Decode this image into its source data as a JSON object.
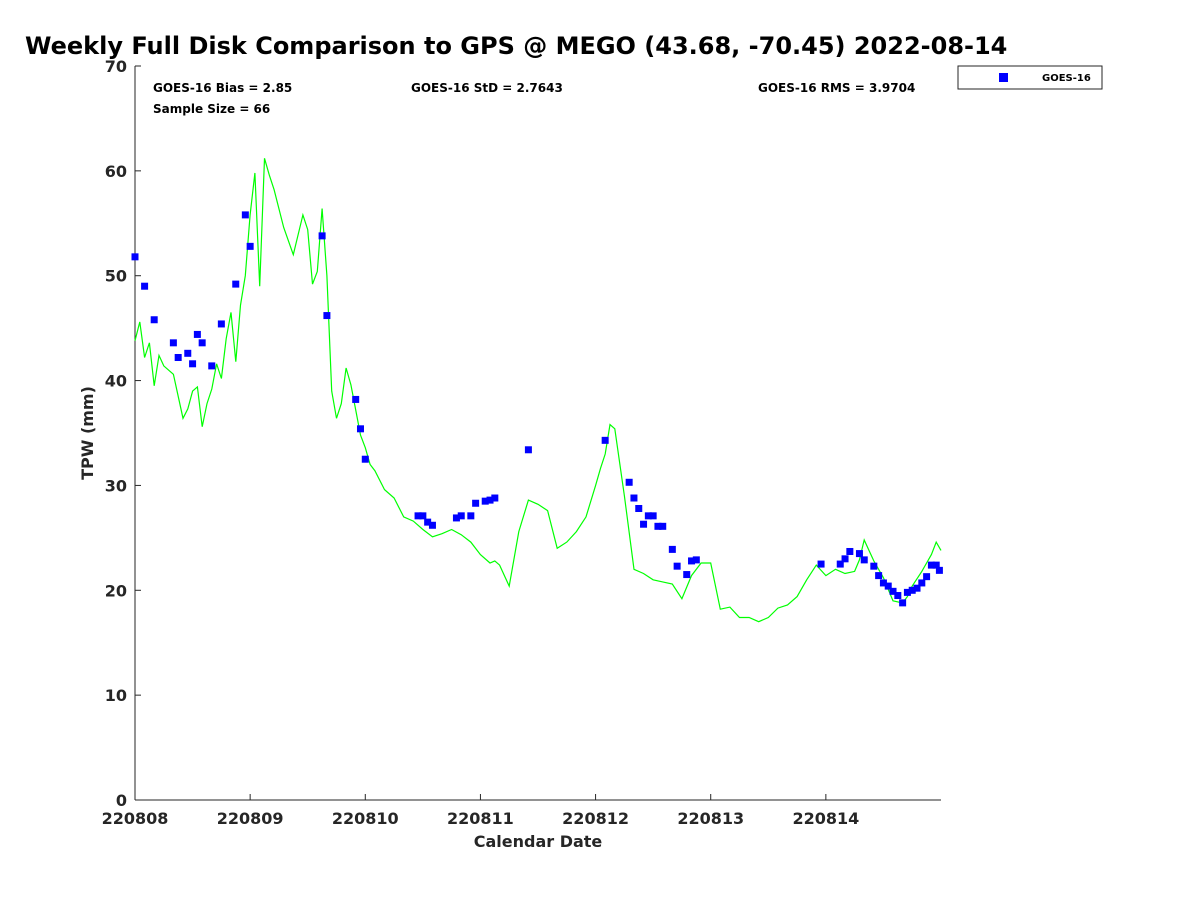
{
  "chart_data": {
    "type": "scatter",
    "title": "Weekly Full Disk Comparison to GPS @ MEGO (43.68, -70.45) 2022-08-14",
    "xlabel": "Calendar Date",
    "ylabel": "TPW (mm)",
    "xlim": [
      "2022-08-08T00:00",
      "2022-08-15T00:00"
    ],
    "ylim": [
      0,
      70
    ],
    "x_tick_labels": [
      "220808",
      "220809",
      "220810",
      "220811",
      "220812",
      "220813",
      "220814"
    ],
    "y_tick_labels": [
      "0",
      "10",
      "20",
      "30",
      "40",
      "50",
      "60",
      "70"
    ],
    "grid": false,
    "legend": {
      "position": "outside-top-right",
      "entries": [
        "GOES-16"
      ]
    },
    "annotations": {
      "bias": "GOES-16 Bias = 2.85",
      "std": "GOES-16 StD = 2.7643",
      "rms": "GOES-16 RMS = 3.9704",
      "sample": "Sample Size = 66"
    },
    "series": [
      {
        "name": "GOES-16",
        "marker": "square",
        "color": "#0000ff",
        "x": [
          "2022-08-08T00:00",
          "2022-08-08T02:00",
          "2022-08-08T04:00",
          "2022-08-08T08:00",
          "2022-08-08T09:00",
          "2022-08-08T11:00",
          "2022-08-08T12:00",
          "2022-08-08T13:00",
          "2022-08-08T14:00",
          "2022-08-08T16:00",
          "2022-08-08T18:00",
          "2022-08-08T21:00",
          "2022-08-08T23:00",
          "2022-08-09T00:00",
          "2022-08-09T15:00",
          "2022-08-09T16:00",
          "2022-08-09T22:00",
          "2022-08-09T23:00",
          "2022-08-10T00:00",
          "2022-08-10T11:00",
          "2022-08-10T12:00",
          "2022-08-10T13:00",
          "2022-08-10T14:00",
          "2022-08-10T19:00",
          "2022-08-10T20:00",
          "2022-08-10T22:00",
          "2022-08-10T23:00",
          "2022-08-11T01:00",
          "2022-08-11T02:00",
          "2022-08-11T03:00",
          "2022-08-11T10:00",
          "2022-08-12T02:00",
          "2022-08-12T07:00",
          "2022-08-12T08:00",
          "2022-08-12T09:00",
          "2022-08-12T10:00",
          "2022-08-12T11:00",
          "2022-08-12T12:00",
          "2022-08-12T13:00",
          "2022-08-12T14:00",
          "2022-08-12T16:00",
          "2022-08-12T17:00",
          "2022-08-12T19:00",
          "2022-08-12T20:00",
          "2022-08-12T21:00",
          "2022-08-13T23:00",
          "2022-08-14T03:00",
          "2022-08-14T04:00",
          "2022-08-14T05:00",
          "2022-08-14T07:00",
          "2022-08-14T08:00",
          "2022-08-14T10:00",
          "2022-08-14T11:00",
          "2022-08-14T12:00",
          "2022-08-14T13:00",
          "2022-08-14T14:00",
          "2022-08-14T15:00",
          "2022-08-14T16:00",
          "2022-08-14T17:00",
          "2022-08-14T18:00",
          "2022-08-14T19:00",
          "2022-08-14T20:00",
          "2022-08-14T21:00",
          "2022-08-14T22:00",
          "2022-08-14T23:00",
          "2022-08-14T23:40"
        ],
        "y": [
          51.8,
          49.0,
          45.8,
          43.6,
          42.2,
          42.6,
          41.6,
          44.4,
          43.6,
          41.4,
          45.4,
          49.2,
          55.8,
          52.8,
          53.8,
          46.2,
          38.2,
          35.4,
          32.5,
          27.1,
          27.1,
          26.5,
          26.2,
          26.9,
          27.1,
          27.1,
          28.3,
          28.5,
          28.6,
          28.8,
          33.4,
          34.3,
          30.3,
          28.8,
          27.8,
          26.3,
          27.1,
          27.1,
          26.1,
          26.1,
          23.9,
          22.3,
          21.5,
          22.8,
          22.9,
          22.5,
          22.5,
          23.0,
          23.7,
          23.5,
          22.9,
          22.3,
          21.4,
          20.7,
          20.4,
          19.9,
          19.5,
          18.8,
          19.8,
          20.0,
          20.2,
          20.7,
          21.3,
          22.4,
          22.4,
          21.9
        ]
      },
      {
        "name": "",
        "type": "line",
        "color": "#00ff00",
        "x": [
          "2022-08-08T00:00",
          "2022-08-08T01:00",
          "2022-08-08T02:00",
          "2022-08-08T03:00",
          "2022-08-08T04:00",
          "2022-08-08T05:00",
          "2022-08-08T06:00",
          "2022-08-08T08:00",
          "2022-08-08T10:00",
          "2022-08-08T11:00",
          "2022-08-08T12:00",
          "2022-08-08T13:00",
          "2022-08-08T14:00",
          "2022-08-08T15:00",
          "2022-08-08T16:00",
          "2022-08-08T17:00",
          "2022-08-08T18:00",
          "2022-08-08T19:00",
          "2022-08-08T20:00",
          "2022-08-08T21:00",
          "2022-08-08T22:00",
          "2022-08-08T23:00",
          "2022-08-09T00:00",
          "2022-08-09T01:00",
          "2022-08-09T02:00",
          "2022-08-09T03:00",
          "2022-08-09T04:00",
          "2022-08-09T05:00",
          "2022-08-09T07:00",
          "2022-08-09T09:00",
          "2022-08-09T11:00",
          "2022-08-09T12:00",
          "2022-08-09T13:00",
          "2022-08-09T14:00",
          "2022-08-09T15:00",
          "2022-08-09T16:00",
          "2022-08-09T17:00",
          "2022-08-09T18:00",
          "2022-08-09T19:00",
          "2022-08-09T20:00",
          "2022-08-09T21:00",
          "2022-08-09T22:00",
          "2022-08-09T23:00",
          "2022-08-10T00:00",
          "2022-08-10T01:00",
          "2022-08-10T02:00",
          "2022-08-10T04:00",
          "2022-08-10T06:00",
          "2022-08-10T08:00",
          "2022-08-10T10:00",
          "2022-08-10T12:00",
          "2022-08-10T14:00",
          "2022-08-10T16:00",
          "2022-08-10T18:00",
          "2022-08-10T20:00",
          "2022-08-10T22:00",
          "2022-08-11T00:00",
          "2022-08-11T02:00",
          "2022-08-11T03:00",
          "2022-08-11T04:00",
          "2022-08-11T06:00",
          "2022-08-11T08:00",
          "2022-08-11T10:00",
          "2022-08-11T12:00",
          "2022-08-11T14:00",
          "2022-08-11T16:00",
          "2022-08-11T18:00",
          "2022-08-11T20:00",
          "2022-08-11T22:00",
          "2022-08-12T00:00",
          "2022-08-12T01:00",
          "2022-08-12T02:00",
          "2022-08-12T03:00",
          "2022-08-12T04:00",
          "2022-08-12T06:00",
          "2022-08-12T08:00",
          "2022-08-12T10:00",
          "2022-08-12T12:00",
          "2022-08-12T14:00",
          "2022-08-12T16:00",
          "2022-08-12T18:00",
          "2022-08-12T20:00",
          "2022-08-12T22:00",
          "2022-08-13T00:00",
          "2022-08-13T02:00",
          "2022-08-13T04:00",
          "2022-08-13T06:00",
          "2022-08-13T08:00",
          "2022-08-13T10:00",
          "2022-08-13T12:00",
          "2022-08-13T14:00",
          "2022-08-13T16:00",
          "2022-08-13T18:00",
          "2022-08-13T20:00",
          "2022-08-13T22:00",
          "2022-08-14T00:00",
          "2022-08-14T02:00",
          "2022-08-14T04:00",
          "2022-08-14T06:00",
          "2022-08-14T07:00",
          "2022-08-14T08:00",
          "2022-08-14T10:00",
          "2022-08-14T12:00",
          "2022-08-14T14:00",
          "2022-08-14T16:00",
          "2022-08-14T17:00",
          "2022-08-14T18:00",
          "2022-08-14T20:00",
          "2022-08-14T21:00",
          "2022-08-14T22:00",
          "2022-08-14T23:00",
          "2022-08-15T00:00"
        ],
        "y": [
          43.8,
          45.6,
          42.2,
          43.6,
          39.5,
          42.4,
          41.4,
          40.6,
          36.4,
          37.3,
          39.0,
          39.4,
          35.6,
          37.8,
          39.2,
          41.6,
          40.2,
          44.0,
          46.5,
          41.8,
          47.2,
          50.0,
          55.8,
          59.8,
          49.0,
          61.2,
          59.6,
          58.2,
          54.6,
          52.0,
          55.8,
          54.4,
          49.2,
          50.4,
          56.4,
          50.0,
          39.0,
          36.4,
          37.8,
          41.2,
          39.6,
          37.2,
          34.8,
          33.6,
          32.0,
          31.4,
          29.6,
          28.8,
          27.0,
          26.6,
          25.8,
          25.1,
          25.4,
          25.8,
          25.3,
          24.6,
          23.4,
          22.6,
          22.8,
          22.4,
          20.4,
          25.6,
          28.6,
          28.2,
          27.6,
          24.0,
          24.6,
          25.6,
          27.0,
          30.0,
          31.6,
          33.0,
          35.8,
          35.4,
          29.0,
          22.0,
          21.6,
          21.0,
          20.8,
          20.6,
          19.2,
          21.4,
          22.6,
          22.6,
          18.2,
          18.4,
          17.4,
          17.4,
          17.0,
          17.4,
          18.3,
          18.6,
          19.4,
          21.0,
          22.4,
          21.4,
          22.0,
          21.6,
          21.8,
          22.9,
          24.8,
          22.8,
          21.2,
          19.0,
          18.8,
          19.4,
          20.4,
          21.8,
          22.6,
          23.4,
          24.6,
          23.8
        ]
      }
    ]
  }
}
